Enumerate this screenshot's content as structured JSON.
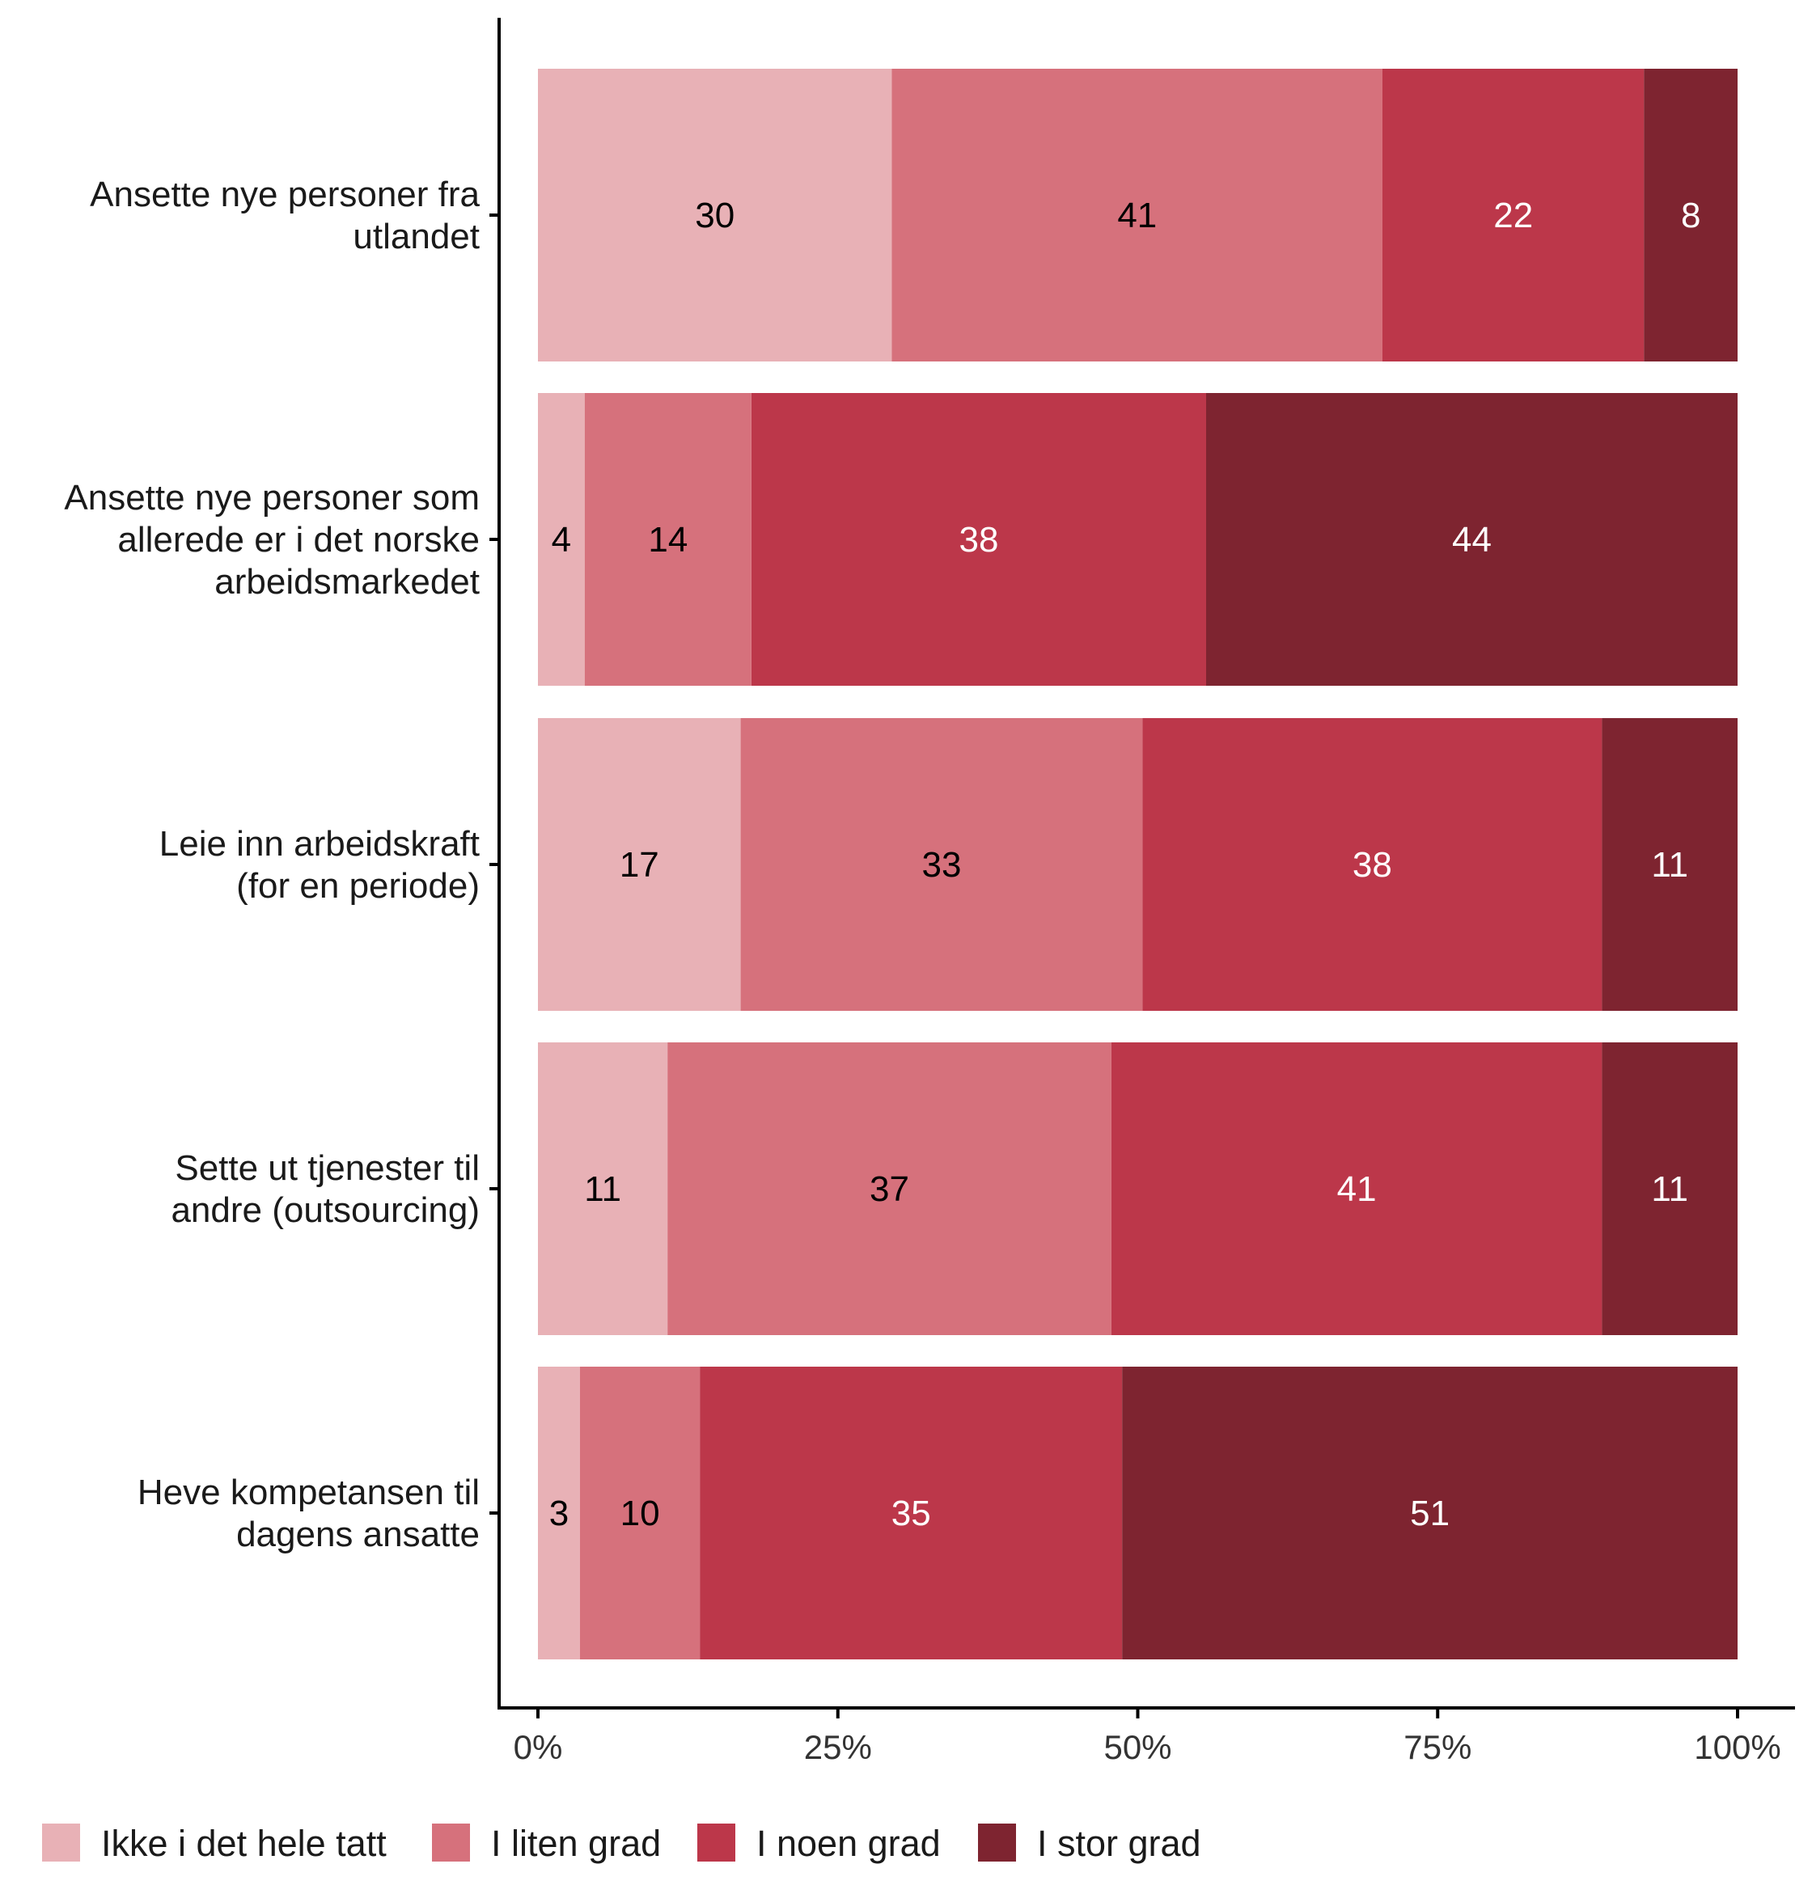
{
  "chart_data": {
    "type": "bar",
    "orientation": "horizontal",
    "stacked": true,
    "categories": [
      [
        "Ansette nye personer fra",
        "utlandet"
      ],
      [
        "Ansette nye personer som",
        "allerede er i det norske",
        "arbeidsmarkedet"
      ],
      [
        "Leie inn arbeidskraft",
        "(for en periode)"
      ],
      [
        "Sette ut tjenester til",
        "andre (outsourcing)"
      ],
      [
        "Heve kompetansen til",
        "dagens ansatte"
      ]
    ],
    "series": [
      {
        "name": "Ikke i det hele tatt",
        "color": "#E8B1B6",
        "label_color": "#000000",
        "values": [
          29.5,
          3.9,
          16.9,
          10.8,
          3.5
        ],
        "labels": [
          "30",
          "4",
          "17",
          "11",
          "3"
        ]
      },
      {
        "name": "I liten grad",
        "color": "#D6717C",
        "label_color": "#000000",
        "values": [
          40.9,
          13.9,
          33.5,
          37.0,
          10.0
        ],
        "labels": [
          "41",
          "14",
          "33",
          "37",
          "10"
        ]
      },
      {
        "name": "I noen grad",
        "color": "#BC374A",
        "label_color": "#ffffff",
        "values": [
          21.8,
          37.9,
          38.3,
          40.9,
          35.2
        ],
        "labels": [
          "22",
          "38",
          "38",
          "41",
          "35"
        ]
      },
      {
        "name": "I stor grad",
        "color": "#7E2430",
        "label_color": "#ffffff",
        "values": [
          7.8,
          44.3,
          11.3,
          11.3,
          51.3
        ],
        "labels": [
          "8",
          "44",
          "11",
          "11",
          "51"
        ]
      }
    ],
    "x_ticks": [
      "0%",
      "25%",
      "50%",
      "75%",
      "100%"
    ],
    "xlim": [
      0,
      100
    ],
    "xlabel": "",
    "ylabel": "",
    "grid": false,
    "legend_position": "bottom"
  }
}
